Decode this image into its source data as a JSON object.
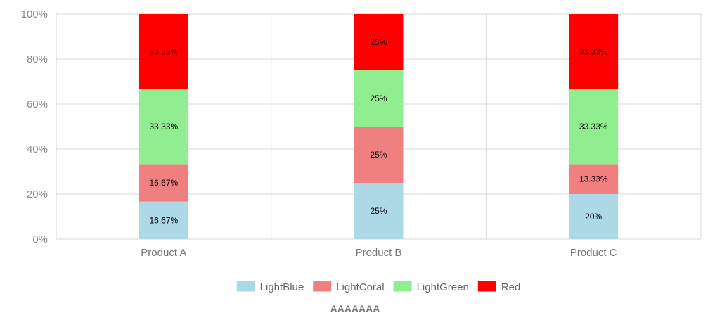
{
  "chart_data": {
    "type": "bar",
    "stacked": true,
    "percent": true,
    "categories": [
      "Product A",
      "Product B",
      "Product C"
    ],
    "series": [
      {
        "name": "LightBlue",
        "color": "#add8e6",
        "values": [
          16.67,
          25,
          20
        ],
        "labels": [
          "16.67%",
          "25%",
          "20%"
        ]
      },
      {
        "name": "LightCoral",
        "color": "#f08080",
        "values": [
          16.67,
          25,
          13.33
        ],
        "labels": [
          "16.67%",
          "25%",
          "13.33%"
        ]
      },
      {
        "name": "LightGreen",
        "color": "#90ee90",
        "values": [
          33.33,
          25,
          33.33
        ],
        "labels": [
          "33.33%",
          "25%",
          "33.33%"
        ]
      },
      {
        "name": "Red",
        "color": "#ff0000",
        "values": [
          33.33,
          25,
          33.33
        ],
        "labels": [
          "33.33%",
          "25%",
          "33.33%"
        ]
      }
    ],
    "yticks": [
      "0%",
      "20%",
      "40%",
      "60%",
      "80%",
      "100%"
    ],
    "ylim": [
      0,
      100
    ],
    "xlabel": "AAAAAAA",
    "ylabel": "",
    "title": "",
    "grid": true,
    "legend_position": "bottom"
  }
}
